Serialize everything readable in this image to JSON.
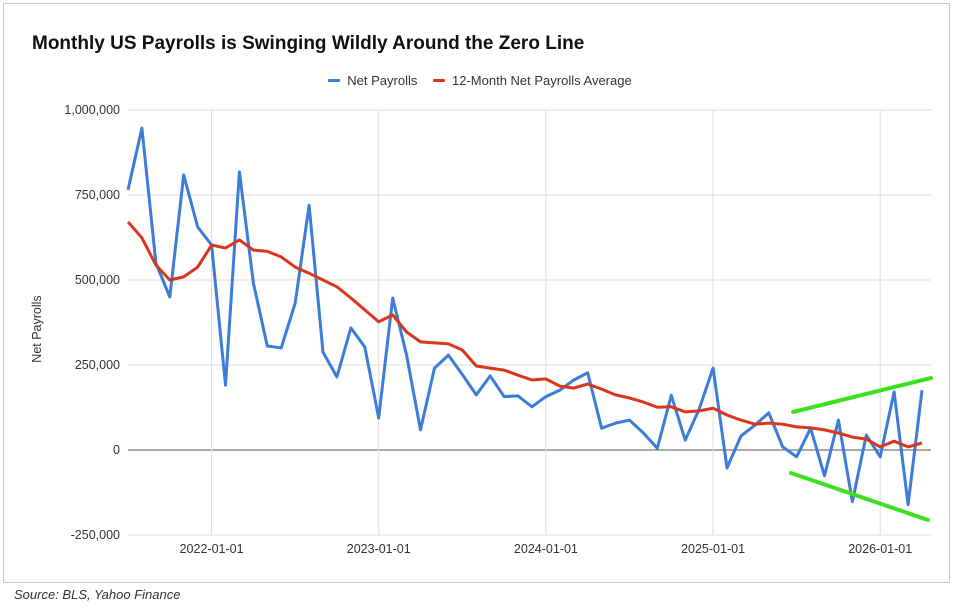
{
  "chart_data": {
    "type": "line",
    "title": "Monthly US Payrolls is Swinging Wildly Around the Zero Line",
    "xlabel": "",
    "ylabel": "Net Payrolls",
    "start_month": "2021-07",
    "end_month": "2026-04",
    "ylim": [
      -250000,
      1000000
    ],
    "y_ticks": [
      "1,000,000",
      "750,000",
      "500,000",
      "250,000",
      "0",
      "-250,000"
    ],
    "y_tick_values": [
      1000000,
      750000,
      500000,
      250000,
      0,
      -250000
    ],
    "x_ticks": [
      "2022-01-01",
      "2023-01-01",
      "2024-01-01",
      "2025-01-01",
      "2026-01-01"
    ],
    "x_tick_month_index": [
      6,
      18,
      30,
      42,
      54
    ],
    "legend_position": "top",
    "grid": true,
    "series": [
      {
        "name": "Net Payrolls",
        "color": "#3b7dd8",
        "values": [
          765000,
          947000,
          550000,
          450000,
          809000,
          656000,
          603000,
          191000,
          818000,
          491000,
          306000,
          300000,
          432000,
          720000,
          288000,
          215000,
          359000,
          303000,
          94000,
          447000,
          279000,
          59000,
          241000,
          279000,
          222000,
          162000,
          218000,
          157000,
          159000,
          127000,
          157000,
          176000,
          206000,
          227000,
          64000,
          79000,
          88000,
          50000,
          5000,
          161000,
          29000,
          120000,
          241000,
          -53000,
          41000,
          73000,
          109000,
          9000,
          -20000,
          64000,
          -76000,
          88000,
          -152000,
          44000,
          -20000,
          171000,
          -161000,
          176000
        ]
      },
      {
        "name": "12-Month Net Payrolls Average",
        "color": "#d9361e",
        "values": [
          671000,
          624000,
          544000,
          500000,
          509000,
          538000,
          603000,
          594000,
          618000,
          588000,
          584000,
          568000,
          538000,
          520000,
          500000,
          480000,
          447000,
          412000,
          377000,
          397000,
          347000,
          318000,
          315000,
          312000,
          294000,
          247000,
          241000,
          235000,
          220000,
          206000,
          209000,
          188000,
          182000,
          194000,
          179000,
          162000,
          153000,
          141000,
          126000,
          127000,
          112000,
          115000,
          123000,
          103000,
          88000,
          76000,
          79000,
          76000,
          68000,
          65000,
          59000,
          50000,
          38000,
          32000,
          9000,
          26000,
          9000,
          21000
        ]
      }
    ],
    "annotations": [
      {
        "type": "trend-lines",
        "color": "#3ee01e",
        "description_shape": "widening wedge"
      }
    ]
  },
  "source": "Source: BLS, Yahoo Finance"
}
